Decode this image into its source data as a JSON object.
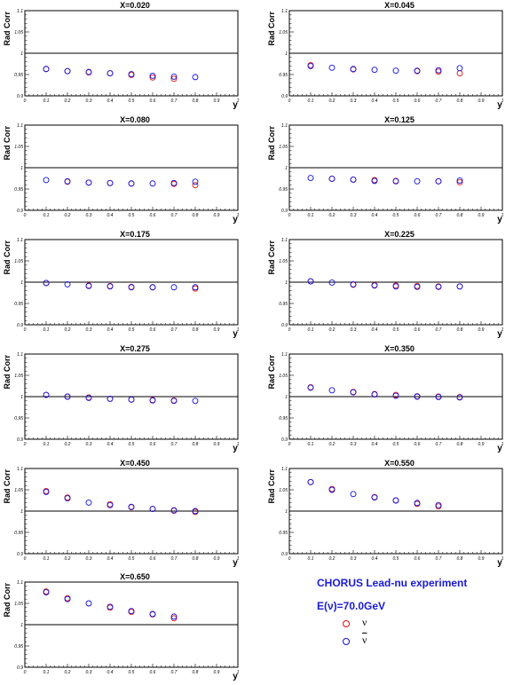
{
  "colors": {
    "nu": "#e01010",
    "nubar": "#1010e0",
    "legend_text": "#1a1ad6",
    "frame": "#000000"
  },
  "legend": {
    "title": "CHORUS Lead-nu experiment",
    "energy": "E(ν)=70.0GeV",
    "entries": [
      {
        "label": "ν",
        "marker": "open-circle",
        "color": "#e01010"
      },
      {
        "label": "ν",
        "marker": "open-circle",
        "color": "#1010e0"
      }
    ]
  },
  "chart_data": [
    {
      "type": "scatter",
      "title": "X=0.020",
      "xlabel": "y",
      "ylabel": "Rad Corr",
      "xlim": [
        0,
        1
      ],
      "ylim": [
        0.9,
        1.1
      ],
      "hline": 1.0,
      "xticks": [
        "0",
        "0.1",
        "0.2",
        "0.3",
        "0.4",
        "0.5",
        "0.6",
        "0.7",
        "0.8",
        "0.9",
        "1"
      ],
      "yticks": [
        "0.9",
        "0.95",
        "1",
        "1.05",
        "1.1"
      ],
      "series": [
        {
          "name": "ν",
          "x": [
            0.1,
            0.2,
            0.3,
            0.4,
            0.5,
            0.6,
            0.7,
            0.8
          ],
          "y": [
            0.963,
            0.958,
            0.955,
            0.953,
            0.949,
            0.943,
            0.94,
            null
          ]
        },
        {
          "name": "ν̄",
          "x": [
            0.1,
            0.2,
            0.3,
            0.4,
            0.5,
            0.6,
            0.7,
            0.8
          ],
          "y": [
            0.963,
            0.958,
            0.956,
            0.953,
            0.951,
            0.947,
            0.945,
            0.944
          ]
        }
      ]
    },
    {
      "type": "scatter",
      "title": "X=0.045",
      "xlabel": "y",
      "ylabel": "Rad Corr",
      "xlim": [
        0,
        1
      ],
      "ylim": [
        0.9,
        1.1
      ],
      "hline": 1.0,
      "xticks": [
        "0",
        "0.1",
        "0.2",
        "0.3",
        "0.4",
        "0.5",
        "0.6",
        "0.7",
        "0.8",
        "0.9",
        "1"
      ],
      "yticks": [
        "0.9",
        "0.95",
        "1",
        "1.05",
        "1.1"
      ],
      "series": [
        {
          "name": "ν",
          "x": [
            0.1,
            0.2,
            0.3,
            0.4,
            0.5,
            0.6,
            0.7,
            0.8
          ],
          "y": [
            0.972,
            null,
            0.962,
            null,
            null,
            0.958,
            0.957,
            0.953
          ]
        },
        {
          "name": "ν̄",
          "x": [
            0.1,
            0.2,
            0.3,
            0.4,
            0.5,
            0.6,
            0.7,
            0.8
          ],
          "y": [
            0.97,
            0.966,
            0.963,
            0.961,
            0.959,
            0.959,
            0.96,
            0.965
          ]
        }
      ]
    },
    {
      "type": "scatter",
      "title": "X=0.080",
      "xlabel": "y",
      "ylabel": "Rad Corr",
      "xlim": [
        0,
        1
      ],
      "ylim": [
        0.9,
        1.1
      ],
      "hline": 1.0,
      "xticks": [
        "0",
        "0.1",
        "0.2",
        "0.3",
        "0.4",
        "0.5",
        "0.6",
        "0.7",
        "0.8",
        "0.9",
        "1"
      ],
      "yticks": [
        "0.9",
        "0.95",
        "1",
        "1.05",
        "1.1"
      ],
      "series": [
        {
          "name": "ν",
          "x": [
            0.1,
            0.2,
            0.3,
            0.4,
            0.5,
            0.6,
            0.7,
            0.8
          ],
          "y": [
            null,
            0.967,
            0.965,
            0.964,
            0.963,
            null,
            0.962,
            0.959
          ]
        },
        {
          "name": "ν̄",
          "x": [
            0.1,
            0.2,
            0.3,
            0.4,
            0.5,
            0.6,
            0.7,
            0.8
          ],
          "y": [
            0.971,
            0.968,
            0.965,
            0.964,
            0.963,
            0.963,
            0.964,
            0.967
          ]
        }
      ]
    },
    {
      "type": "scatter",
      "title": "X=0.125",
      "xlabel": "y",
      "ylabel": "Rad Corr",
      "xlim": [
        0,
        1
      ],
      "ylim": [
        0.9,
        1.1
      ],
      "hline": 1.0,
      "xticks": [
        "0",
        "0.1",
        "0.2",
        "0.3",
        "0.4",
        "0.5",
        "0.6",
        "0.7",
        "0.8",
        "0.9",
        "1"
      ],
      "yticks": [
        "0.9",
        "0.95",
        "1",
        "1.05",
        "1.1"
      ],
      "series": [
        {
          "name": "ν",
          "x": [
            0.1,
            0.2,
            0.3,
            0.4,
            0.5,
            0.6,
            0.7,
            0.8
          ],
          "y": [
            null,
            0.974,
            0.972,
            0.971,
            0.969,
            null,
            0.968,
            0.966
          ]
        },
        {
          "name": "ν̄",
          "x": [
            0.1,
            0.2,
            0.3,
            0.4,
            0.5,
            0.6,
            0.7,
            0.8
          ],
          "y": [
            0.976,
            0.974,
            0.972,
            0.969,
            0.968,
            0.968,
            0.968,
            0.97
          ]
        }
      ]
    },
    {
      "type": "scatter",
      "title": "X=0.175",
      "xlabel": "y",
      "ylabel": "Rad Corr",
      "xlim": [
        0,
        1
      ],
      "ylim": [
        0.9,
        1.1
      ],
      "hline": 1.0,
      "xticks": [
        "0",
        "0.1",
        "0.2",
        "0.3",
        "0.4",
        "0.5",
        "0.6",
        "0.7",
        "0.8",
        "0.9",
        "1"
      ],
      "yticks": [
        "0.9",
        "0.95",
        "1",
        "1.05",
        "1.1"
      ],
      "series": [
        {
          "name": "ν",
          "x": [
            0.1,
            0.2,
            0.3,
            0.4,
            0.5,
            0.6,
            0.7,
            0.8
          ],
          "y": [
            0.998,
            null,
            0.992,
            0.991,
            0.989,
            0.988,
            null,
            0.985
          ]
        },
        {
          "name": "ν̄",
          "x": [
            0.1,
            0.2,
            0.3,
            0.4,
            0.5,
            0.6,
            0.7,
            0.8
          ],
          "y": [
            0.998,
            0.995,
            0.991,
            0.99,
            0.988,
            0.988,
            0.988,
            0.988
          ]
        }
      ]
    },
    {
      "type": "scatter",
      "title": "X=0.225",
      "xlabel": "y",
      "ylabel": "Rad Corr",
      "xlim": [
        0,
        1
      ],
      "ylim": [
        0.9,
        1.1
      ],
      "hline": 1.0,
      "xticks": [
        "0",
        "0.1",
        "0.2",
        "0.3",
        "0.4",
        "0.5",
        "0.6",
        "0.7",
        "0.8",
        "0.9",
        "1"
      ],
      "yticks": [
        "0.9",
        "0.95",
        "1",
        "1.05",
        "1.1"
      ],
      "series": [
        {
          "name": "ν",
          "x": [
            0.1,
            0.2,
            0.3,
            0.4,
            0.5,
            0.6,
            0.7,
            0.8
          ],
          "y": [
            1.002,
            null,
            0.994,
            0.993,
            0.992,
            0.991,
            0.99,
            0.99
          ]
        },
        {
          "name": "ν̄",
          "x": [
            0.1,
            0.2,
            0.3,
            0.4,
            0.5,
            0.6,
            0.7,
            0.8
          ],
          "y": [
            1.002,
            0.999,
            0.995,
            0.992,
            0.99,
            0.989,
            0.989,
            0.99
          ]
        }
      ]
    },
    {
      "type": "scatter",
      "title": "X=0.275",
      "xlabel": "y",
      "ylabel": "Rad Corr",
      "xlim": [
        0,
        1
      ],
      "ylim": [
        0.9,
        1.1
      ],
      "hline": 1.0,
      "xticks": [
        "0",
        "0.1",
        "0.2",
        "0.3",
        "0.4",
        "0.5",
        "0.6",
        "0.7",
        "0.8",
        "0.9",
        "1"
      ],
      "yticks": [
        "0.9",
        "0.95",
        "1",
        "1.05",
        "1.1"
      ],
      "series": [
        {
          "name": "ν",
          "x": [
            0.1,
            0.2,
            0.3,
            0.4,
            0.5,
            0.6,
            0.7,
            0.8
          ],
          "y": [
            1.004,
            1.0,
            0.998,
            0.995,
            0.993,
            0.992,
            0.991,
            null
          ]
        },
        {
          "name": "ν̄",
          "x": [
            0.1,
            0.2,
            0.3,
            0.4,
            0.5,
            0.6,
            0.7,
            0.8
          ],
          "y": [
            1.004,
            1.0,
            0.997,
            0.995,
            0.993,
            0.991,
            0.99,
            0.99
          ]
        }
      ]
    },
    {
      "type": "scatter",
      "title": "X=0.350",
      "xlabel": "y",
      "ylabel": "Rad Corr",
      "xlim": [
        0,
        1
      ],
      "ylim": [
        0.9,
        1.1
      ],
      "hline": 1.0,
      "xticks": [
        "0",
        "0.1",
        "0.2",
        "0.3",
        "0.4",
        "0.5",
        "0.6",
        "0.7",
        "0.8",
        "0.9",
        "1"
      ],
      "yticks": [
        "0.9",
        "0.95",
        "1",
        "1.05",
        "1.1"
      ],
      "series": [
        {
          "name": "ν",
          "x": [
            0.1,
            0.2,
            0.3,
            0.4,
            0.5,
            0.6,
            0.7,
            0.8
          ],
          "y": [
            1.022,
            null,
            1.011,
            1.006,
            1.004,
            1.001,
            1.0,
            0.999
          ]
        },
        {
          "name": "ν̄",
          "x": [
            0.1,
            0.2,
            0.3,
            0.4,
            0.5,
            0.6,
            0.7,
            0.8
          ],
          "y": [
            1.021,
            1.015,
            1.01,
            1.005,
            1.002,
            1.0,
            0.999,
            0.998
          ]
        }
      ]
    },
    {
      "type": "scatter",
      "title": "X=0.450",
      "xlabel": "y",
      "ylabel": "Rad Corr",
      "xlim": [
        0,
        1
      ],
      "ylim": [
        0.9,
        1.1
      ],
      "hline": 1.0,
      "xticks": [
        "0",
        "0.1",
        "0.2",
        "0.3",
        "0.4",
        "0.5",
        "0.6",
        "0.7",
        "0.8",
        "0.9",
        "1"
      ],
      "yticks": [
        "0.9",
        "0.95",
        "1",
        "1.05",
        "1.1"
      ],
      "series": [
        {
          "name": "ν",
          "x": [
            0.1,
            0.2,
            0.3,
            0.4,
            0.5,
            0.6,
            0.7,
            0.8
          ],
          "y": [
            1.047,
            1.032,
            null,
            1.016,
            1.009,
            1.005,
            1.001,
            0.998
          ]
        },
        {
          "name": "ν̄",
          "x": [
            0.1,
            0.2,
            0.3,
            0.4,
            0.5,
            0.6,
            0.7,
            0.8
          ],
          "y": [
            1.045,
            1.03,
            1.02,
            1.014,
            1.01,
            1.005,
            1.002,
            1.0
          ]
        }
      ]
    },
    {
      "type": "scatter",
      "title": "X=0.550",
      "xlabel": "y",
      "ylabel": "Rad Corr",
      "xlim": [
        0,
        1
      ],
      "ylim": [
        0.9,
        1.1
      ],
      "hline": 1.0,
      "xticks": [
        "0",
        "0.1",
        "0.2",
        "0.3",
        "0.4",
        "0.5",
        "0.6",
        "0.7",
        "0.8",
        "0.9",
        "1"
      ],
      "yticks": [
        "0.9",
        "0.95",
        "1",
        "1.05",
        "1.1"
      ],
      "series": [
        {
          "name": "ν",
          "x": [
            0.1,
            0.2,
            0.3,
            0.4,
            0.5,
            0.6,
            0.7
          ],
          "y": [
            1.068,
            1.052,
            null,
            1.033,
            1.025,
            1.017,
            1.011
          ]
        },
        {
          "name": "ν̄",
          "x": [
            0.1,
            0.2,
            0.3,
            0.4,
            0.5,
            0.6,
            0.7
          ],
          "y": [
            1.068,
            1.05,
            1.04,
            1.032,
            1.025,
            1.019,
            1.014
          ]
        }
      ]
    },
    {
      "type": "scatter",
      "title": "X=0.650",
      "xlabel": "y",
      "ylabel": "Rad Corr",
      "xlim": [
        0,
        1
      ],
      "ylim": [
        0.9,
        1.1
      ],
      "hline": 1.0,
      "xticks": [
        "0",
        "0.1",
        "0.2",
        "0.3",
        "0.4",
        "0.5",
        "0.6",
        "0.7",
        "0.8",
        "0.9",
        "1"
      ],
      "yticks": [
        "0.9",
        "0.95",
        "1",
        "1.05",
        "1.1"
      ],
      "series": [
        {
          "name": "ν",
          "x": [
            0.1,
            0.2,
            0.3,
            0.4,
            0.5,
            0.6,
            0.7
          ],
          "y": [
            1.078,
            1.062,
            null,
            1.04,
            1.03,
            1.024,
            1.015
          ]
        },
        {
          "name": "ν̄",
          "x": [
            0.1,
            0.2,
            0.3,
            0.4,
            0.5,
            0.6,
            0.7
          ],
          "y": [
            1.076,
            1.06,
            1.05,
            1.042,
            1.032,
            1.025,
            1.019
          ]
        }
      ]
    }
  ]
}
